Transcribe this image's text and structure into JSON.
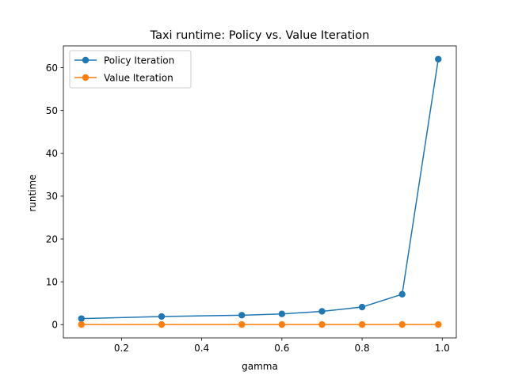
{
  "colors": {
    "background": "#ffffff",
    "axes": "#000000",
    "legend_frame": "#cccccc"
  },
  "chart_data": {
    "type": "line",
    "title": "Taxi runtime: Policy vs. Value Iteration",
    "xlabel": "gamma",
    "ylabel": "runtime",
    "xlim": [
      0.055,
      1.035
    ],
    "ylim": [
      -3.1,
      65.1
    ],
    "xticks": [
      0.2,
      0.4,
      0.6,
      0.8,
      1.0
    ],
    "xtick_labels": [
      "0.2",
      "0.4",
      "0.6",
      "0.8",
      "1.0"
    ],
    "yticks": [
      0,
      10,
      20,
      30,
      40,
      50,
      60
    ],
    "ytick_labels": [
      "0",
      "10",
      "20",
      "30",
      "40",
      "50",
      "60"
    ],
    "grid": false,
    "legend_position": "top-left",
    "x": [
      0.1,
      0.3,
      0.5,
      0.6,
      0.7,
      0.8,
      0.9,
      0.99
    ],
    "series": [
      {
        "name": "Policy Iteration",
        "color": "#1f77b4",
        "marker": "circle",
        "values": [
          1.4,
          1.9,
          2.2,
          2.5,
          3.1,
          4.1,
          7.1,
          62.0
        ]
      },
      {
        "name": "Value Iteration",
        "color": "#ff7f0e",
        "marker": "circle",
        "values": [
          0.02,
          0.02,
          0.02,
          0.02,
          0.02,
          0.02,
          0.02,
          0.02
        ]
      }
    ]
  }
}
